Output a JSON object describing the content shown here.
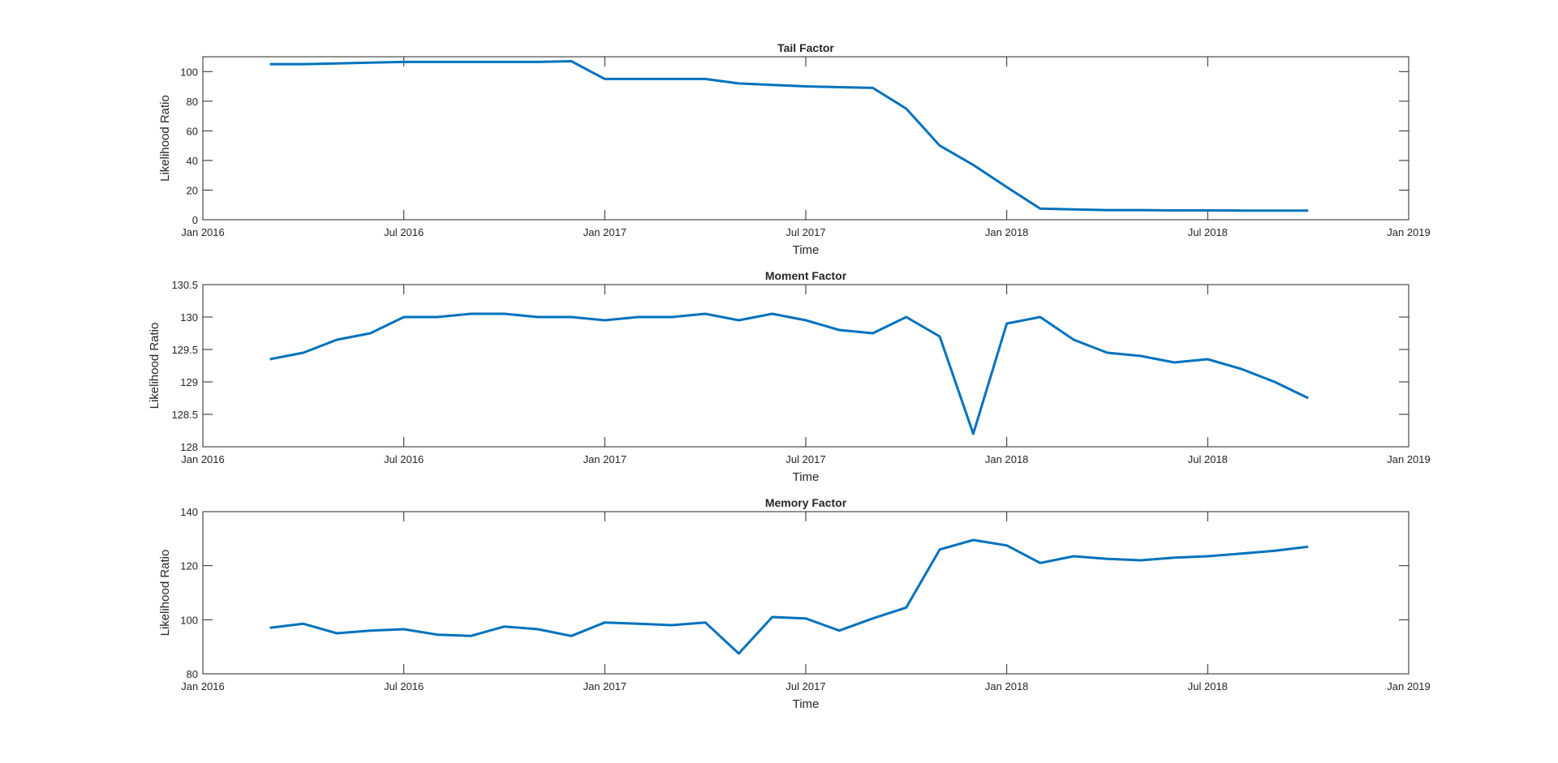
{
  "chart_data": [
    {
      "type": "line",
      "title": "Tail Factor",
      "xlabel": "Time",
      "ylabel": "Likelihood Ratio",
      "color": "#0072bd",
      "x": [
        "2016-03",
        "2016-04",
        "2016-05",
        "2016-06",
        "2016-07",
        "2016-08",
        "2016-09",
        "2016-10",
        "2016-11",
        "2016-12",
        "2017-01",
        "2017-02",
        "2017-03",
        "2017-04",
        "2017-05",
        "2017-06",
        "2017-07",
        "2017-08",
        "2017-09",
        "2017-10",
        "2017-11",
        "2017-12",
        "2018-01",
        "2018-02",
        "2018-03",
        "2018-04",
        "2018-05",
        "2018-06",
        "2018-07",
        "2018-08",
        "2018-09",
        "2018-10"
      ],
      "values": [
        105,
        105,
        105.5,
        106,
        106.5,
        106.5,
        106.5,
        106.5,
        106.5,
        107,
        95,
        95,
        95,
        95,
        92,
        91,
        90,
        89.5,
        89,
        75,
        50,
        37,
        22,
        7.5,
        7,
        6.5,
        6.5,
        6.3,
        6.3,
        6.2,
        6.2,
        6.2
      ],
      "xlim": [
        "2016-01",
        "2019-01"
      ],
      "xticks": [
        {
          "value": "2016-01",
          "label": "Jan 2016"
        },
        {
          "value": "2016-07",
          "label": "Jul 2016"
        },
        {
          "value": "2017-01",
          "label": "Jan 2017"
        },
        {
          "value": "2017-07",
          "label": "Jul 2017"
        },
        {
          "value": "2018-01",
          "label": "Jan 2018"
        },
        {
          "value": "2018-07",
          "label": "Jul 2018"
        },
        {
          "value": "2019-01",
          "label": "Jan 2019"
        }
      ],
      "ylim": [
        0,
        110
      ],
      "yticks": [
        0,
        20,
        40,
        60,
        80,
        100
      ]
    },
    {
      "type": "line",
      "title": "Moment Factor",
      "xlabel": "Time",
      "ylabel": "Likelihood Ratio",
      "color": "#0072bd",
      "x": [
        "2016-03",
        "2016-04",
        "2016-05",
        "2016-06",
        "2016-07",
        "2016-08",
        "2016-09",
        "2016-10",
        "2016-11",
        "2016-12",
        "2017-01",
        "2017-02",
        "2017-03",
        "2017-04",
        "2017-05",
        "2017-06",
        "2017-07",
        "2017-08",
        "2017-09",
        "2017-10",
        "2017-11",
        "2017-12",
        "2018-01",
        "2018-02",
        "2018-03",
        "2018-04",
        "2018-05",
        "2018-06",
        "2018-07",
        "2018-08",
        "2018-09",
        "2018-10"
      ],
      "values": [
        129.35,
        129.45,
        129.65,
        129.75,
        130,
        130,
        130.05,
        130.05,
        130,
        130,
        129.95,
        130,
        130,
        130.05,
        129.95,
        130.05,
        129.95,
        129.8,
        129.75,
        130,
        129.7,
        128.2,
        129.9,
        130,
        129.65,
        129.45,
        129.4,
        129.3,
        129.35,
        129.2,
        129,
        128.75
      ],
      "xlim": [
        "2016-01",
        "2019-01"
      ],
      "xticks": [
        {
          "value": "2016-01",
          "label": "Jan 2016"
        },
        {
          "value": "2016-07",
          "label": "Jul 2016"
        },
        {
          "value": "2017-01",
          "label": "Jan 2017"
        },
        {
          "value": "2017-07",
          "label": "Jul 2017"
        },
        {
          "value": "2018-01",
          "label": "Jan 2018"
        },
        {
          "value": "2018-07",
          "label": "Jul 2018"
        },
        {
          "value": "2019-01",
          "label": "Jan 2019"
        }
      ],
      "ylim": [
        128,
        130.5
      ],
      "yticks": [
        128,
        128.5,
        129,
        129.5,
        130,
        130.5
      ]
    },
    {
      "type": "line",
      "title": "Memory Factor",
      "xlabel": "Time",
      "ylabel": "Likelihood Ratio",
      "color": "#0072bd",
      "x": [
        "2016-03",
        "2016-04",
        "2016-05",
        "2016-06",
        "2016-07",
        "2016-08",
        "2016-09",
        "2016-10",
        "2016-11",
        "2016-12",
        "2017-01",
        "2017-02",
        "2017-03",
        "2017-04",
        "2017-05",
        "2017-06",
        "2017-07",
        "2017-08",
        "2017-09",
        "2017-10",
        "2017-11",
        "2017-12",
        "2018-01",
        "2018-02",
        "2018-03",
        "2018-04",
        "2018-05",
        "2018-06",
        "2018-07",
        "2018-08",
        "2018-09",
        "2018-10"
      ],
      "values": [
        97,
        98.5,
        95,
        96,
        96.5,
        94.5,
        94,
        97.5,
        96.5,
        94,
        99,
        98.5,
        98,
        99,
        87.5,
        101,
        100.5,
        96,
        100.5,
        104.5,
        126,
        129.5,
        127.5,
        121,
        123.5,
        122.5,
        122,
        123,
        123.5,
        124.5,
        125.5,
        127
      ],
      "xlim": [
        "2016-01",
        "2019-01"
      ],
      "xticks": [
        {
          "value": "2016-01",
          "label": "Jan 2016"
        },
        {
          "value": "2016-07",
          "label": "Jul 2016"
        },
        {
          "value": "2017-01",
          "label": "Jan 2017"
        },
        {
          "value": "2017-07",
          "label": "Jul 2017"
        },
        {
          "value": "2018-01",
          "label": "Jan 2018"
        },
        {
          "value": "2018-07",
          "label": "Jul 2018"
        },
        {
          "value": "2019-01",
          "label": "Jan 2019"
        }
      ],
      "ylim": [
        80,
        140
      ],
      "yticks": [
        80,
        100,
        120,
        140
      ]
    }
  ]
}
